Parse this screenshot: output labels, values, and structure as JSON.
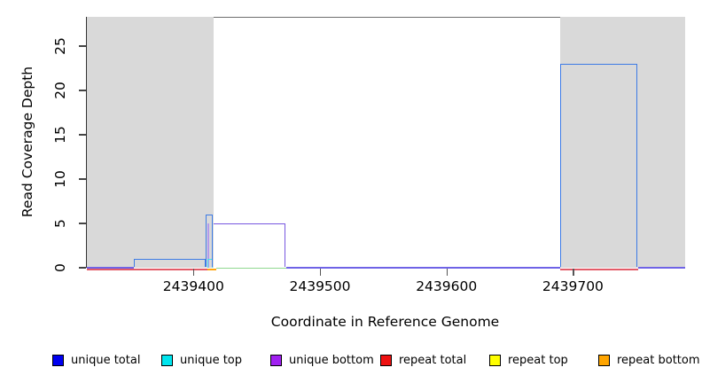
{
  "figure": {
    "y_axis": {
      "label": "Read Coverage Depth",
      "ticks": [
        {
          "value": 0,
          "label": "0"
        },
        {
          "value": 5,
          "label": "5"
        },
        {
          "value": 10,
          "label": "10"
        },
        {
          "value": 15,
          "label": "15"
        },
        {
          "value": 20,
          "label": "20"
        },
        {
          "value": 25,
          "label": "25"
        }
      ]
    },
    "x_axis": {
      "label": "Coordinate in Reference Genome",
      "ticks": [
        {
          "coord": 2439400,
          "label": "2439400"
        },
        {
          "coord": 2439500,
          "label": "2439500"
        },
        {
          "coord": 2439600,
          "label": "2439600"
        },
        {
          "coord": 2439700,
          "label": "2439700"
        }
      ]
    },
    "legend": [
      {
        "label": "unique total",
        "swatch": "#0000f0"
      },
      {
        "label": "unique top",
        "swatch": "#00e5ee"
      },
      {
        "label": "unique bottom",
        "swatch": "#a020f0"
      },
      {
        "label": "repeat total",
        "swatch": "#ee1111"
      },
      {
        "label": "repeat top",
        "swatch": "#ffff00"
      },
      {
        "label": "repeat bottom",
        "swatch": "#ffa500"
      }
    ],
    "colors": {
      "frame_top_line": "#6e6e6e",
      "axis": "#333333",
      "shaded_region": "#d9d9d9",
      "blue_line": "#3d7be5",
      "cyan_line": "#44e2ee",
      "purple_line": "#7757e0",
      "lavender_line": "#b49aec",
      "baseline_purple": "#6f63e6",
      "red_line": "#e35b68",
      "orange_line": "#ffa510",
      "green_line": "#8fd88f"
    }
  },
  "chart_data": {
    "type": "area",
    "title": "",
    "xlabel": "Coordinate in Reference Genome",
    "ylabel": "Read Coverage Depth",
    "xlim": [
      2439315,
      2439788
    ],
    "ylim": [
      0,
      28
    ],
    "x_ticks": [
      2439400,
      2439500,
      2439600,
      2439700
    ],
    "y_ticks": [
      0,
      5,
      10,
      15,
      20,
      25
    ],
    "grid": false,
    "legend_position": "bottom",
    "shaded_regions": [
      {
        "x1": 2439315,
        "x2": 2439415.5
      },
      {
        "x1": 2439689,
        "x2": 2439788
      }
    ],
    "series": [
      {
        "name": "unique total",
        "color_key": "blue_line",
        "segments": [
          [
            2439352,
            2439409,
            1
          ],
          [
            2439409,
            2439415,
            6
          ],
          [
            2439415,
            2439472,
            5
          ],
          [
            2439689,
            2439751,
            23
          ]
        ],
        "baseline_elsewhere": 0
      },
      {
        "name": "unique top",
        "color_key": "cyan_line",
        "segments": [
          [
            2439410,
            2439415,
            1
          ]
        ],
        "baseline_elsewhere": 0
      },
      {
        "name": "unique bottom",
        "color_key": "purple_line",
        "segments": [
          [
            2439411,
            2439472,
            5
          ]
        ],
        "baseline_elsewhere": 0
      },
      {
        "name": "repeat total",
        "color_key": "red_line",
        "segments": [],
        "baseline_elsewhere": 0
      },
      {
        "name": "repeat top",
        "color_key": "yellow",
        "segments": [],
        "baseline_elsewhere": 0
      },
      {
        "name": "repeat bottom",
        "color_key": "orange_line",
        "segments": [],
        "baseline_elsewhere": 0
      }
    ],
    "render_segments": [
      {
        "shape": "hline",
        "x1": 2439315,
        "x2": 2439417,
        "v": 0,
        "dy": 1.8,
        "w": 1.5,
        "color_key": "red_line"
      },
      {
        "shape": "hline",
        "x1": 2439689,
        "x2": 2439751,
        "v": 0,
        "dy": 1.8,
        "w": 1.5,
        "color_key": "red_line"
      },
      {
        "shape": "hline",
        "x1": 2439410,
        "x2": 2439417,
        "v": 0,
        "dy": 1.8,
        "w": 1.5,
        "color_key": "orange_line"
      },
      {
        "shape": "hline",
        "x1": 2439417,
        "x2": 2439472.5,
        "v": 0,
        "dy": 0.6,
        "w": 1.3,
        "color_key": "green_line"
      },
      {
        "shape": "hline",
        "x1": 2439315,
        "x2": 2439352,
        "v": 0,
        "dy": 0,
        "w": 1.6,
        "color_key": "baseline_purple"
      },
      {
        "shape": "hline",
        "x1": 2439472.5,
        "x2": 2439689,
        "v": 0,
        "dy": 0,
        "w": 1.6,
        "color_key": "baseline_purple"
      },
      {
        "shape": "hline",
        "x1": 2439751,
        "x2": 2439788,
        "v": 0,
        "dy": 0,
        "w": 1.6,
        "color_key": "baseline_purple"
      },
      {
        "shape": "vline",
        "x": 2439411,
        "v": 5,
        "w": 1.5,
        "color_key": "lavender_line"
      },
      {
        "shape": "box",
        "x1": 2439410.5,
        "x2": 2439415.5,
        "v": 1,
        "w": 1.5,
        "color_key": "cyan_line"
      },
      {
        "shape": "box",
        "x1": 2439352,
        "x2": 2439410,
        "v": 1,
        "w": 1.6,
        "color_key": "blue_line"
      },
      {
        "shape": "box",
        "x1": 2439409,
        "x2": 2439415.5,
        "v": 6,
        "w": 1.6,
        "color_key": "blue_line"
      },
      {
        "shape": "box",
        "x1": 2439689,
        "x2": 2439751,
        "v": 23,
        "w": 1.6,
        "color_key": "blue_line"
      },
      {
        "shape": "steptr",
        "x1": 2439415.5,
        "x2": 2439472.5,
        "v": 5,
        "w": 1.6,
        "color_key": "purple_line"
      }
    ]
  }
}
